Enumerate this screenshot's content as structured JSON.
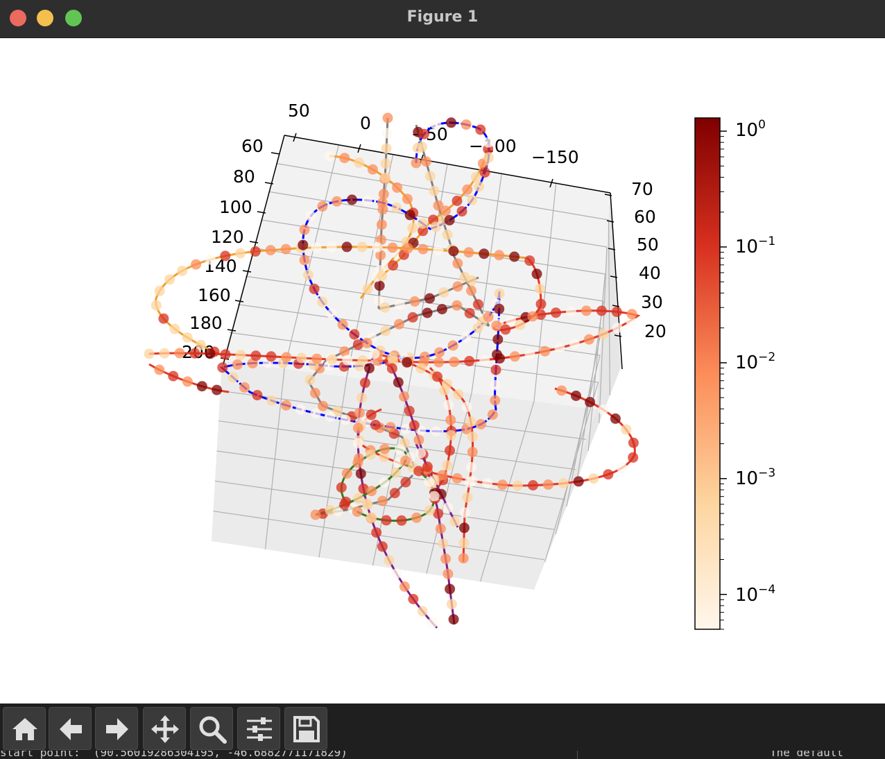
{
  "window": {
    "title": "Figure 1",
    "controls": {
      "close_color": "#ec6a5e",
      "minimize_color": "#f4bf4f",
      "maximize_color": "#61c554"
    }
  },
  "toolbar": {
    "buttons": [
      {
        "name": "home",
        "icon": "home-icon"
      },
      {
        "name": "back",
        "icon": "arrow-left-icon"
      },
      {
        "name": "forward",
        "icon": "arrow-right-icon"
      },
      {
        "name": "pan",
        "icon": "move-icon"
      },
      {
        "name": "zoom",
        "icon": "magnifier-icon"
      },
      {
        "name": "configure-subplots",
        "icon": "sliders-icon"
      },
      {
        "name": "save",
        "icon": "floppy-disk-icon"
      }
    ]
  },
  "terminal": {
    "left_text": "start point:  (90.56019286304195, -46.6882771171829)",
    "right_text": "The default"
  },
  "chart_data": {
    "type": "scatter",
    "projection": "3d",
    "title": "",
    "xlabel": "",
    "ylabel": "",
    "zlabel": "",
    "x_ticks": [
      "50",
      "0",
      "−50",
      "−100",
      "−150"
    ],
    "y_ticks": [
      "60",
      "80",
      "100",
      "120",
      "140",
      "160",
      "180",
      "200"
    ],
    "z_ticks": [
      "70",
      "60",
      "50",
      "40",
      "30",
      "20"
    ],
    "grid": true,
    "pane_color": "#f2f2f2",
    "series": [
      {
        "name": "",
        "kind": "line",
        "color": "#808080"
      },
      {
        "name": "",
        "kind": "line",
        "color": "#f0a030"
      },
      {
        "name": "",
        "kind": "line",
        "color": "#0000ff"
      },
      {
        "name": "",
        "kind": "line",
        "color": "#e03a28"
      },
      {
        "name": "",
        "kind": "line",
        "color": "#7b1f8c"
      },
      {
        "name": "",
        "kind": "line",
        "color": "#3a7a1c"
      }
    ],
    "marker_color_scale": "log",
    "colorbar": {
      "cmap": "OrRd",
      "scale": "log",
      "range": [
        5e-05,
        1.3
      ],
      "tick_labels": [
        {
          "base": "10",
          "exp": "0"
        },
        {
          "base": "10",
          "exp": "−1"
        },
        {
          "base": "10",
          "exp": "−2"
        },
        {
          "base": "10",
          "exp": "−3"
        },
        {
          "base": "10",
          "exp": "−4"
        }
      ],
      "colors": [
        "#fff7ec",
        "#fdd49e",
        "#fc8d59",
        "#d7301f",
        "#7f0000"
      ]
    }
  }
}
